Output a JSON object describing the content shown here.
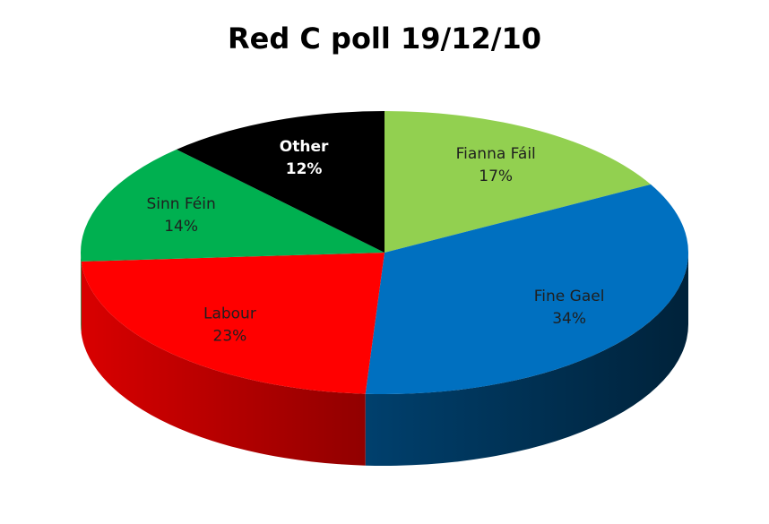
{
  "chart_data": {
    "type": "pie3d",
    "title": "Red C poll 19/12/10",
    "categories": [
      "Fianna Fáil",
      "Fine Gael",
      "Labour",
      "Sinn Féin",
      "Other"
    ],
    "values": [
      17,
      34,
      23,
      14,
      12
    ],
    "value_labels": [
      "17%",
      "34%",
      "23%",
      "14%",
      "12%"
    ],
    "colors": [
      "#92d050",
      "#0070c0",
      "#ff0000",
      "#00b050",
      "#000000"
    ]
  }
}
